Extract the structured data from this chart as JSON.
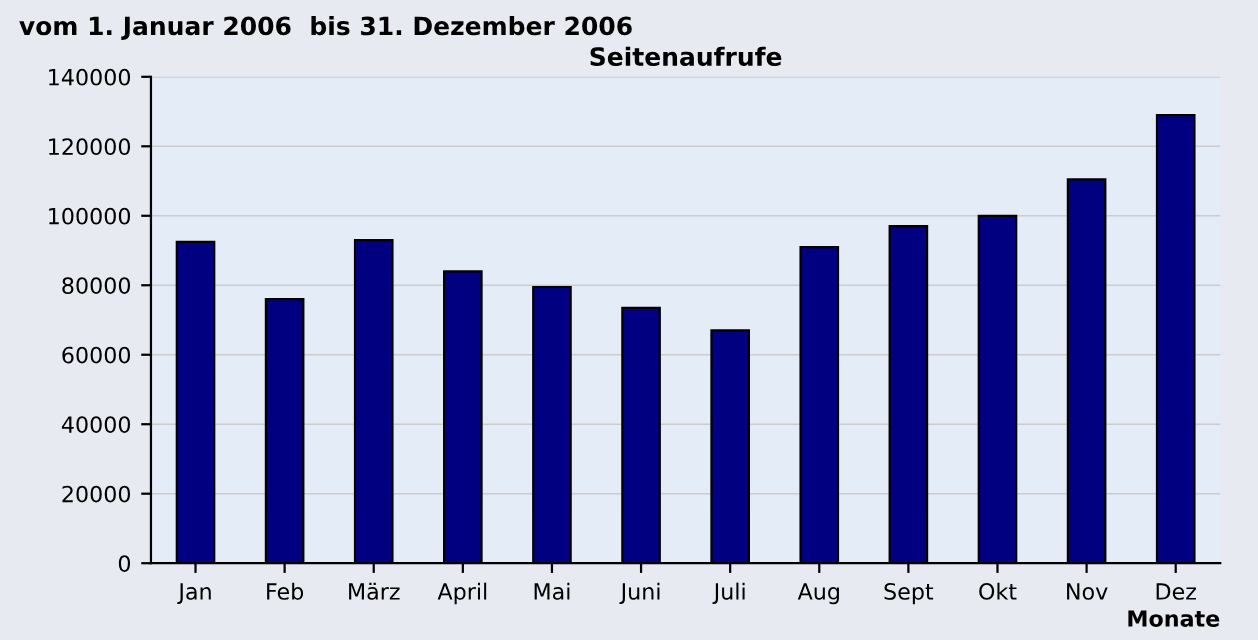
{
  "chart_data": {
    "type": "bar",
    "title": "Seitenaufrufe",
    "subtitle": "vom 1. Januar 2006  bis 31. Dezember 2006",
    "xlabel": "Monate",
    "categories": [
      "Jan",
      "Feb",
      "März",
      "April",
      "Mai",
      "Juni",
      "Juli",
      "Aug",
      "Sept",
      "Okt",
      "Nov",
      "Dez"
    ],
    "values": [
      92500,
      76000,
      93000,
      84000,
      79500,
      73500,
      67000,
      91000,
      97000,
      100000,
      110500,
      129000
    ],
    "color": "#000080",
    "ylim": [
      0,
      140000
    ],
    "yticks": [
      0,
      20000,
      40000,
      60000,
      80000,
      100000,
      120000,
      140000
    ],
    "grid": "y"
  }
}
